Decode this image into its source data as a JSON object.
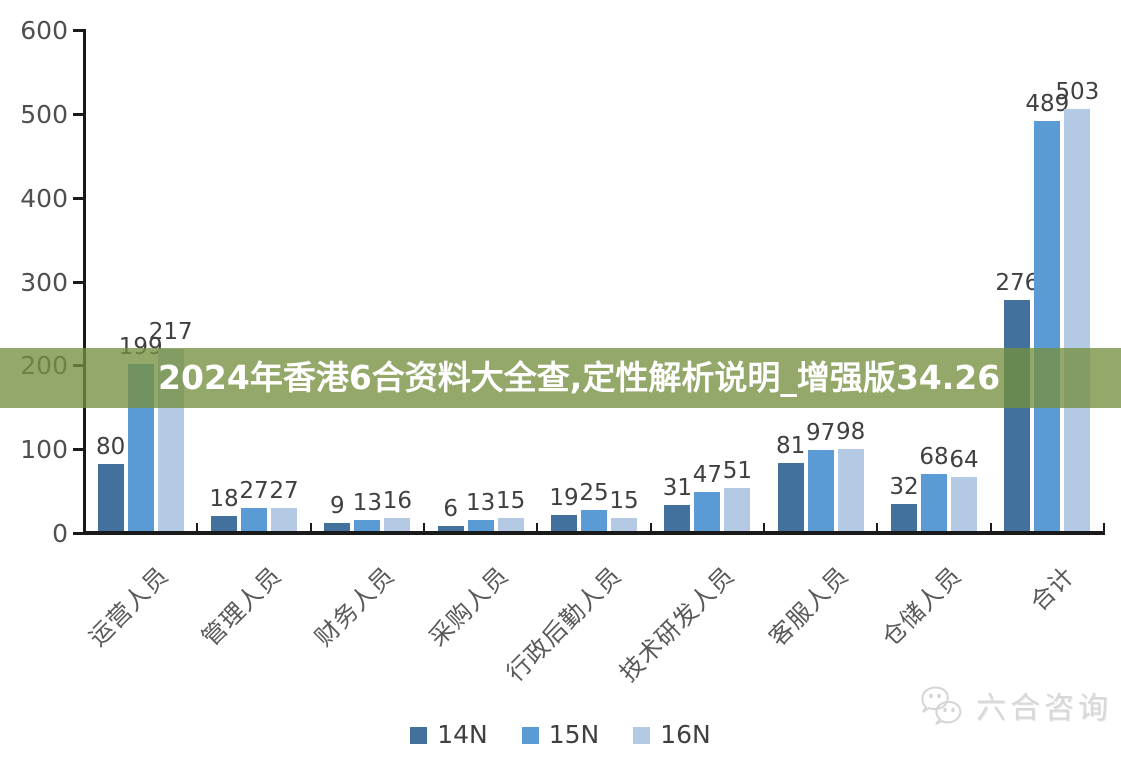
{
  "banner": {
    "text": "2024年香港6合资料大全查,定性解析说明_增强版34.26",
    "bg_color": "#74903F",
    "bg_opacity": 0.78,
    "text_color": "#FFFFFF"
  },
  "chart_data": {
    "type": "bar",
    "title": "",
    "xlabel": "",
    "ylabel": "",
    "categories": [
      "运营人员",
      "管理人员",
      "财务人员",
      "采购人员",
      "行政后勤人员",
      "技术研发人员",
      "客服人员",
      "仓储人员",
      "合计"
    ],
    "series": [
      {
        "name": "14N",
        "color": "#41719C",
        "values": [
          80,
          18,
          9,
          6,
          19,
          31,
          81,
          32,
          276
        ]
      },
      {
        "name": "15N",
        "color": "#5B9BD5",
        "values": [
          199,
          27,
          13,
          13,
          25,
          47,
          97,
          68,
          489
        ]
      },
      {
        "name": "16N",
        "color": "#B4C9E4",
        "values": [
          217,
          27,
          16,
          15,
          15,
          51,
          98,
          64,
          503
        ]
      }
    ],
    "ylim": [
      0,
      600
    ],
    "yticks": [
      0,
      100,
      200,
      300,
      400,
      500,
      600
    ],
    "grid": false,
    "value_labels": true,
    "legend_position": "bottom"
  },
  "watermark": {
    "icon": "wechat-icon",
    "text": "六合咨询",
    "color": "#D8D8D8"
  },
  "colors": {
    "axis": "#1a1a1a",
    "tick_label": "#4f4f4f",
    "value_label": "#404040",
    "category_label": "#595959",
    "legend_label": "#404040"
  }
}
